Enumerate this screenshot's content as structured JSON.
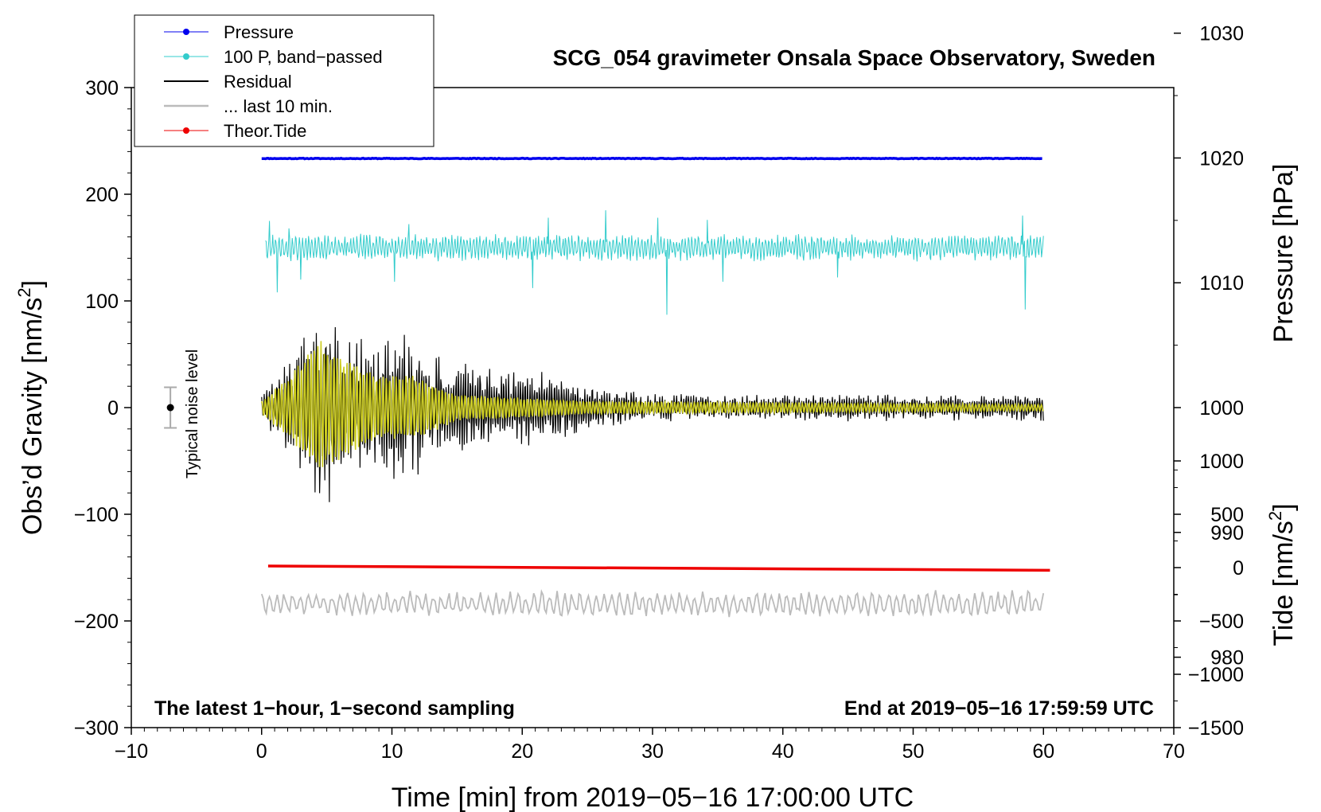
{
  "chart_data": {
    "type": "line",
    "title": "SCG_054 gravimeter Onsala Space Observatory, Sweden",
    "xlabel": "Time [min] from 2019−05−16 17:00:00 UTC",
    "ylabel_left_main": "Obs’d Gravity [nm/s",
    "ylabel_left_sup": "2",
    "ylabel_left_end": "]",
    "ylabel_right_pressure": "Pressure [hPa]",
    "ylabel_right_tide_main": "Tide [nm/s",
    "ylabel_right_tide_sup": "2",
    "ylabel_right_tide_end": "]",
    "xlim": [
      -10,
      70
    ],
    "ylim_left": [
      -300,
      300
    ],
    "x_ticks": [
      -10,
      0,
      10,
      20,
      30,
      40,
      50,
      60,
      70
    ],
    "x_tick_labels": [
      "−10",
      "0",
      "10",
      "20",
      "30",
      "40",
      "50",
      "60",
      "70"
    ],
    "y_left_ticks": [
      300,
      200,
      100,
      0,
      -100,
      -200,
      -300
    ],
    "y_left_tick_labels": [
      "300",
      "200",
      "100",
      "0",
      "−100",
      "−200",
      "−300"
    ],
    "pressure_axis": {
      "ticks": [
        1030,
        1020,
        1010,
        1000,
        990,
        980
      ],
      "tick_labels": [
        "1030",
        "1020",
        "1010",
        "1000",
        "990",
        "980"
      ],
      "ref_value": 1020,
      "ref_left_value": 234,
      "scale": 11.7
    },
    "tide_axis": {
      "ticks": [
        1000,
        500,
        0,
        -500,
        -1000,
        -1500
      ],
      "tick_labels": [
        "1000",
        "500",
        "0",
        "−500",
        "−1000",
        "−1500"
      ],
      "ref_value": 0,
      "ref_left_value": -150,
      "scale": 0.1
    },
    "corner_left_text": "The latest 1−hour, 1−second sampling",
    "corner_right_text": "End at 2019−05−16 17:59:59 UTC",
    "noise_label": "Typical noise level",
    "noise_marker": {
      "x": -7,
      "center": 0,
      "half_range": 19
    },
    "legend": [
      {
        "label": "Pressure",
        "color": "#0000ee",
        "marker": true,
        "width": 1
      },
      {
        "label": "100 P, band−passed",
        "color": "#33cccc",
        "marker": true,
        "width": 1
      },
      {
        "label": "Residual",
        "color": "#000000",
        "marker": false,
        "width": 2
      },
      {
        "label": "... last 10 min.",
        "color": "#bbbbbb",
        "marker": false,
        "width": 2.5
      },
      {
        "label": "Theor.Tide",
        "color": "#ee0000",
        "marker": true,
        "width": 1
      }
    ],
    "series": [
      {
        "name": "Pressure",
        "color": "#0000ee",
        "stroke_width": 3.5,
        "x_start": 0,
        "x_end": 60,
        "baseline": 233.5,
        "amplitude": 0.6,
        "seed": 11
      },
      {
        "name": "100 P, band-passed",
        "color": "#33cccc",
        "stroke_width": 1,
        "x_start": 0.3,
        "x_end": 60,
        "baseline": 150,
        "amplitude": 10,
        "seed": 23,
        "spikes": [
          {
            "x": 0.6,
            "value": 175
          },
          {
            "x": 1.2,
            "value": 108
          },
          {
            "x": 2.1,
            "value": 168
          },
          {
            "x": 3.0,
            "value": 120
          },
          {
            "x": 10.2,
            "value": 118
          },
          {
            "x": 11.3,
            "value": 172
          },
          {
            "x": 20.8,
            "value": 112
          },
          {
            "x": 22.0,
            "value": 178
          },
          {
            "x": 26.4,
            "value": 185
          },
          {
            "x": 30.4,
            "value": 178
          },
          {
            "x": 31.1,
            "value": 87
          },
          {
            "x": 34.2,
            "value": 176
          },
          {
            "x": 35.4,
            "value": 118
          },
          {
            "x": 44.2,
            "value": 122
          },
          {
            "x": 58.6,
            "value": 92
          },
          {
            "x": 58.4,
            "value": 180
          }
        ]
      },
      {
        "name": "Residual",
        "color": "#000000",
        "stroke_width": 1.2,
        "x_start": 0,
        "x_end": 60,
        "baseline": 0,
        "seed": 37,
        "envelope": [
          {
            "x": 0,
            "amp": 12
          },
          {
            "x": 2,
            "amp": 40
          },
          {
            "x": 4.5,
            "amp": 100
          },
          {
            "x": 6,
            "amp": 70
          },
          {
            "x": 9,
            "amp": 55
          },
          {
            "x": 11,
            "amp": 72
          },
          {
            "x": 14,
            "amp": 40
          },
          {
            "x": 20,
            "amp": 35
          },
          {
            "x": 25,
            "amp": 22
          },
          {
            "x": 30,
            "amp": 12
          },
          {
            "x": 60,
            "amp": 12
          }
        ]
      },
      {
        "name": "Residual (filtered)",
        "color": "#cccc22",
        "stroke_width": 1.6,
        "x_start": 0,
        "x_end": 60,
        "baseline": 0,
        "seed": 53,
        "envelope": [
          {
            "x": 0,
            "amp": 6
          },
          {
            "x": 2.2,
            "amp": 30
          },
          {
            "x": 4.4,
            "amp": 62
          },
          {
            "x": 6.5,
            "amp": 45
          },
          {
            "x": 9,
            "amp": 28
          },
          {
            "x": 11.5,
            "amp": 30
          },
          {
            "x": 15,
            "amp": 12
          },
          {
            "x": 25,
            "amp": 6
          },
          {
            "x": 60,
            "amp": 3
          }
        ]
      },
      {
        "name": "Theor.Tide",
        "color": "#ee0000",
        "stroke_width": 3.5,
        "x_start": 0.5,
        "x_end": 60.5,
        "y_start": -148.5,
        "y_end": -152.5
      },
      {
        "name": "... last 10 min.",
        "color": "#bbbbbb",
        "stroke_width": 1.8,
        "x_start": 0,
        "x_end": 60,
        "baseline": -184,
        "amplitude": 10,
        "seed": 71
      }
    ]
  }
}
